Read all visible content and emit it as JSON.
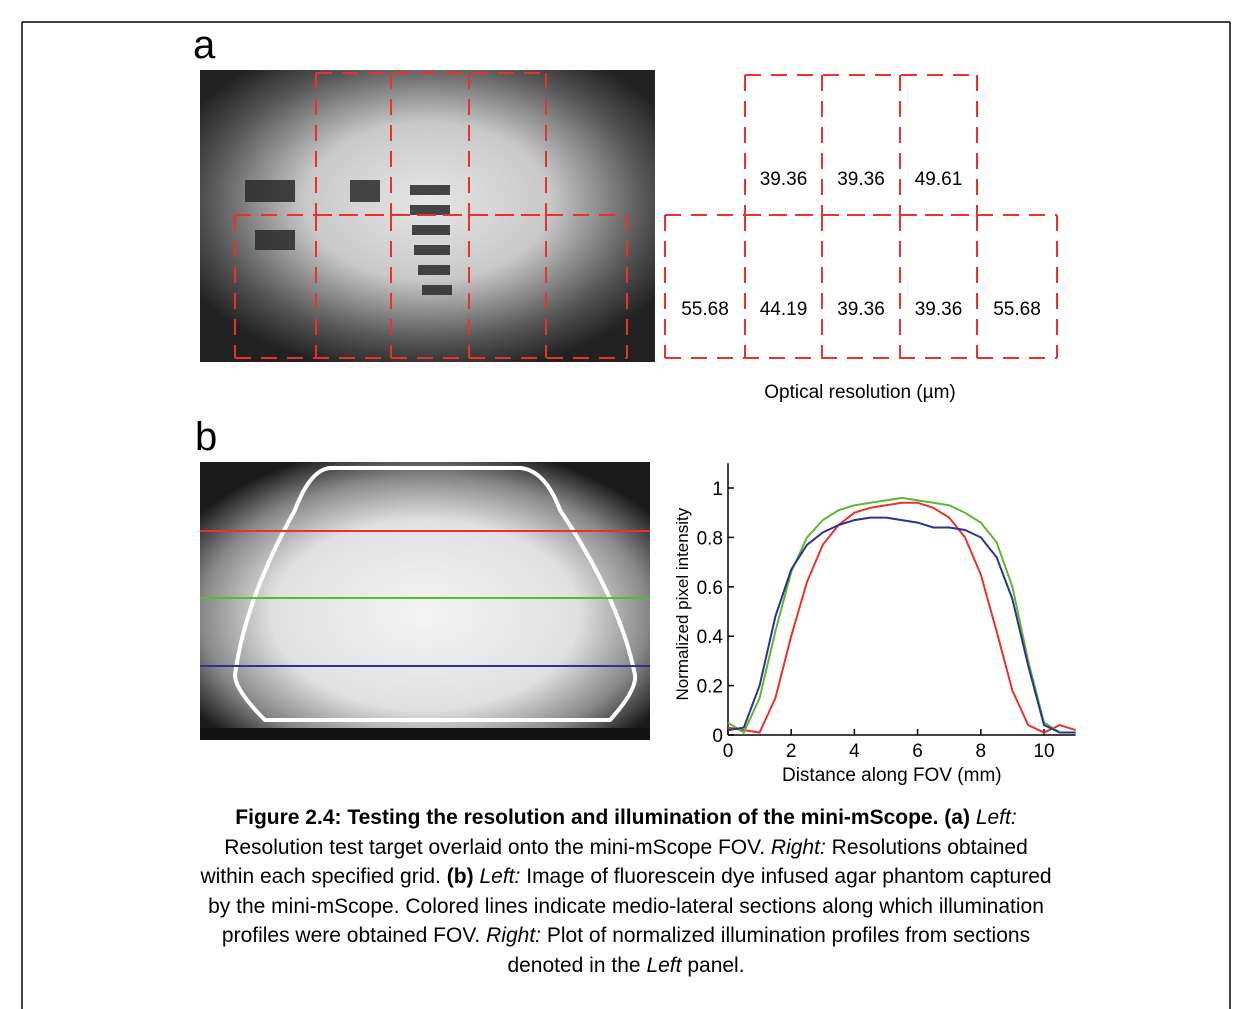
{
  "panels": {
    "a": {
      "label": "a",
      "top_grid": [
        39.36,
        39.36,
        49.61
      ],
      "bottom_grid": [
        55.68,
        44.19,
        39.36,
        39.36,
        55.68
      ],
      "axis_label": "Optical resolution (µm)"
    },
    "b": {
      "label": "b"
    }
  },
  "chart_data": {
    "type": "line",
    "xlabel": "Distance along FOV (mm)",
    "ylabel": "Normalized pixel intensity",
    "x": [
      0,
      0.5,
      1,
      1.5,
      2,
      2.5,
      3,
      3.5,
      4,
      4.5,
      5,
      5.5,
      6,
      6.5,
      7,
      7.5,
      8,
      8.5,
      9,
      9.5,
      10,
      10.5,
      11
    ],
    "series": [
      {
        "color": "#e8322b",
        "values": [
          0.03,
          0.02,
          0.01,
          0.15,
          0.4,
          0.62,
          0.77,
          0.85,
          0.9,
          0.92,
          0.93,
          0.94,
          0.94,
          0.92,
          0.88,
          0.8,
          0.65,
          0.42,
          0.18,
          0.04,
          0.01,
          0.04,
          0.02
        ]
      },
      {
        "color": "#5cb82e",
        "values": [
          0.05,
          0.01,
          0.15,
          0.42,
          0.66,
          0.8,
          0.87,
          0.91,
          0.93,
          0.94,
          0.95,
          0.96,
          0.95,
          0.94,
          0.93,
          0.9,
          0.86,
          0.78,
          0.6,
          0.3,
          0.05,
          0.01,
          0.01
        ]
      },
      {
        "color": "#2e3192",
        "values": [
          0.02,
          0.03,
          0.2,
          0.48,
          0.67,
          0.77,
          0.82,
          0.85,
          0.87,
          0.88,
          0.88,
          0.87,
          0.86,
          0.84,
          0.84,
          0.83,
          0.8,
          0.72,
          0.55,
          0.28,
          0.04,
          0.01,
          0.01
        ]
      }
    ],
    "xlim": [
      0,
      11
    ],
    "ylim": [
      0,
      1.1
    ],
    "xticks": [
      0,
      2,
      4,
      6,
      8,
      10
    ],
    "yticks": [
      0,
      0.2,
      0.4,
      0.6,
      0.8,
      1
    ]
  },
  "caption": {
    "lines": [
      [
        {
          "text": "Figure 2.4: Testing the resolution and illumination of the mini-mScope. (a)",
          "style": "bold"
        },
        {
          "text": "Left:",
          "style": "italic"
        }
      ],
      [
        {
          "text": "Resolution test target overlaid onto the mini-mScope FOV.",
          "style": "normal"
        },
        {
          "text": "Right:",
          "style": "italic"
        },
        {
          "text": "Resolutions obtained",
          "style": "normal"
        }
      ],
      [
        {
          "text": "within each specified grid.",
          "style": "normal"
        },
        {
          "text": "(b)",
          "style": "bold"
        },
        {
          "text": "Left:",
          "style": "italic"
        },
        {
          "text": "Image of fluorescein dye infused agar phantom captured",
          "style": "normal"
        }
      ],
      [
        {
          "text": "by the mini-mScope. Colored lines indicate medio-lateral sections along which illumination",
          "style": "normal"
        }
      ],
      [
        {
          "text": "profiles were obtained FOV.",
          "style": "normal"
        },
        {
          "text": "Right:",
          "style": "italic"
        },
        {
          "text": "Plot of normalized illumination profiles from sections",
          "style": "normal"
        }
      ],
      [
        {
          "text": "denoted in the",
          "style": "normal"
        },
        {
          "text": "Left",
          "style": "italic"
        },
        {
          "text": "panel.",
          "style": "normal"
        }
      ]
    ]
  }
}
